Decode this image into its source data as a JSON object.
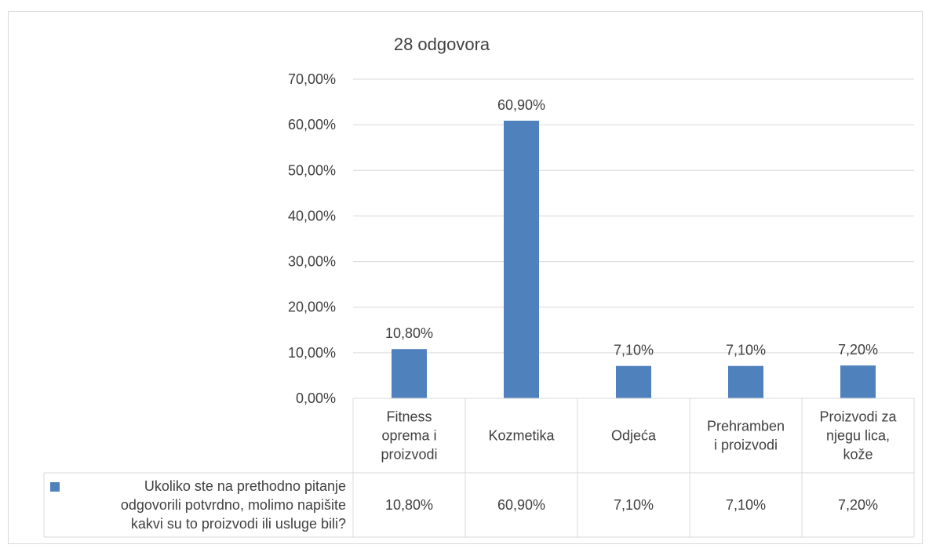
{
  "chart_data": {
    "type": "bar",
    "title": "28 odgovora",
    "categories": [
      [
        "Fitness",
        "oprema i",
        "proizvodi"
      ],
      [
        "Kozmetika"
      ],
      [
        "Odjeća"
      ],
      [
        "Prehramben",
        "i proizvodi"
      ],
      [
        "Proizvodi za",
        "njegu lica,",
        "kože"
      ]
    ],
    "series": [
      {
        "name": "Ukoliko ste na prethodno pitanje odgovorili potvrdno, molimo napišite kakvi su to proizvodi ili usluge bili?",
        "name_lines": [
          "Ukoliko ste na prethodno pitanje",
          "odgovorili potvrdno, molimo napišite",
          "kakvi su to proizvodi ili usluge bili?"
        ],
        "values": [
          10.8,
          60.9,
          7.1,
          7.1,
          7.2
        ],
        "labels": [
          "10,80%",
          "60,90%",
          "7,10%",
          "7,10%",
          "7,20%"
        ],
        "color": "#4f81bd"
      }
    ],
    "ylim": [
      0,
      70
    ],
    "yticks": [
      {
        "value": 0,
        "label": "0,00%"
      },
      {
        "value": 10,
        "label": "10,00%"
      },
      {
        "value": 20,
        "label": "20,00%"
      },
      {
        "value": 30,
        "label": "30,00%"
      },
      {
        "value": 40,
        "label": "40,00%"
      },
      {
        "value": 50,
        "label": "50,00%"
      },
      {
        "value": 60,
        "label": "60,00%"
      },
      {
        "value": 70,
        "label": "70,00%"
      }
    ],
    "grid": true,
    "data_table": true,
    "legend": "data-table"
  },
  "colors": {
    "bar": "#4f81bd",
    "grid": "#d9d9d9",
    "text": "#404040"
  }
}
